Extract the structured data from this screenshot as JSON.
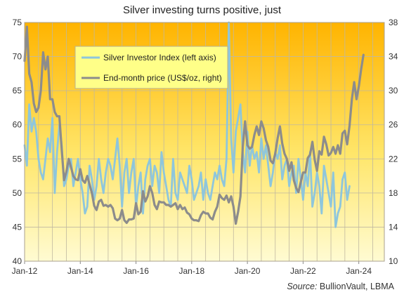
{
  "chart_data": {
    "type": "line",
    "title": "Silver investing turns positive, just",
    "source_label": "Source:",
    "source_text": "BullionVault, LBMA",
    "x_tick_labels": [
      "Jan-12",
      "Jan-14",
      "Jan-16",
      "Jan-18",
      "Jan-20",
      "Jan-22",
      "Jan-24"
    ],
    "x_range": [
      "2012-01",
      "2024-12"
    ],
    "left_axis": {
      "ylim": [
        40,
        75
      ],
      "ticks": [
        40,
        45,
        50,
        55,
        60,
        65,
        70,
        75
      ]
    },
    "right_axis": {
      "ylim": [
        10,
        38
      ],
      "ticks": [
        10,
        14,
        18,
        22,
        26,
        30,
        34,
        38
      ]
    },
    "grid": true,
    "legend_position": "top-left",
    "colors": {
      "index_line": "#8ec6dc",
      "price_line": "#8c8c8c",
      "background_top": "#ffb400",
      "background_bottom": "#fffbd2",
      "legend_bg": "#ffff88",
      "grid": "#c0b8a0"
    },
    "series": [
      {
        "name": "Silver Investor Index (left axis)",
        "axis": "left",
        "start": "2012-01",
        "values": [
          57,
          54,
          63,
          59,
          61,
          59,
          55,
          53,
          52,
          55,
          58,
          56,
          61,
          50,
          56,
          60,
          57,
          51,
          52,
          54,
          55,
          51,
          53,
          55,
          52,
          50,
          47,
          48,
          54,
          52,
          49,
          51,
          55,
          52,
          50,
          53,
          55,
          54,
          52,
          55,
          58,
          54,
          48,
          53,
          55,
          50,
          53,
          55,
          48,
          51,
          53,
          47,
          52,
          54,
          55,
          51,
          54,
          53,
          50,
          56,
          53,
          51,
          49,
          48,
          55,
          50,
          49,
          53,
          52,
          51,
          50,
          54,
          52,
          49,
          50,
          51,
          53,
          49,
          52,
          50,
          49,
          51,
          53,
          52,
          54,
          52,
          51,
          55,
          75,
          58,
          53,
          59,
          61,
          63,
          56,
          53,
          59,
          54,
          57,
          55,
          56,
          53,
          58,
          55,
          57,
          54,
          51,
          53,
          56,
          55,
          57,
          52,
          54,
          55,
          51,
          53,
          54,
          50,
          55,
          52,
          49,
          53,
          51,
          56,
          48,
          50,
          53,
          51,
          47,
          54,
          52,
          50,
          48,
          53,
          45,
          47,
          48,
          52,
          53,
          49,
          51
        ]
      },
      {
        "name": "End-month price (US$/oz, right)",
        "axis": "right",
        "start": "2012-01",
        "values": [
          33.5,
          37.5,
          32,
          31,
          28.5,
          27.5,
          28,
          30,
          34.5,
          32.5,
          34,
          29,
          29,
          27.5,
          27,
          27,
          23,
          19.5,
          20.5,
          22,
          21,
          20,
          19.6,
          19.5,
          20.8,
          19.5,
          19.2,
          20,
          19,
          18,
          16.5,
          16,
          17,
          17.2,
          16.5,
          16.6,
          16.4,
          16.6,
          16.2,
          15,
          14.8,
          15,
          16,
          14.8,
          14.5,
          14.9,
          14.9,
          15,
          16.8,
          15.5,
          15.8,
          18.2,
          17,
          17.6,
          18.8,
          18,
          16.6,
          16.1,
          17,
          16.9,
          16.9,
          16.6,
          16.6,
          16.4,
          16.6,
          16.8,
          16.1,
          16.6,
          16.1,
          16.3,
          15.7,
          15.5,
          15,
          14.8,
          14.8,
          14.7,
          15.4,
          15.8,
          15.6,
          15.6,
          15.1,
          14.9,
          15.8,
          16.4,
          17.8,
          17.4,
          17.2,
          17.7,
          16.9,
          17.6,
          16.4,
          14.4,
          15.8,
          17.6,
          23.4,
          26.4,
          23.6,
          23.2,
          23.4,
          24.8,
          25.8,
          24.8,
          26.4,
          25.6,
          24.2,
          23.4,
          21.8,
          21.5,
          22.6,
          24.4,
          25.8,
          23.8,
          22.6,
          22,
          20.6,
          21.6,
          19.5,
          18.6,
          18.1,
          19.3,
          20.4,
          20.4,
          22.1,
          22.5,
          24,
          21.9,
          20.6,
          22.9,
          22.5,
          24.6,
          23.7,
          22.4,
          22.7,
          23.4,
          22.6,
          23.6,
          22.6,
          25,
          25.3,
          23.7,
          25.9,
          29,
          31,
          29,
          30.5,
          32.5,
          34.2
        ]
      }
    ]
  }
}
